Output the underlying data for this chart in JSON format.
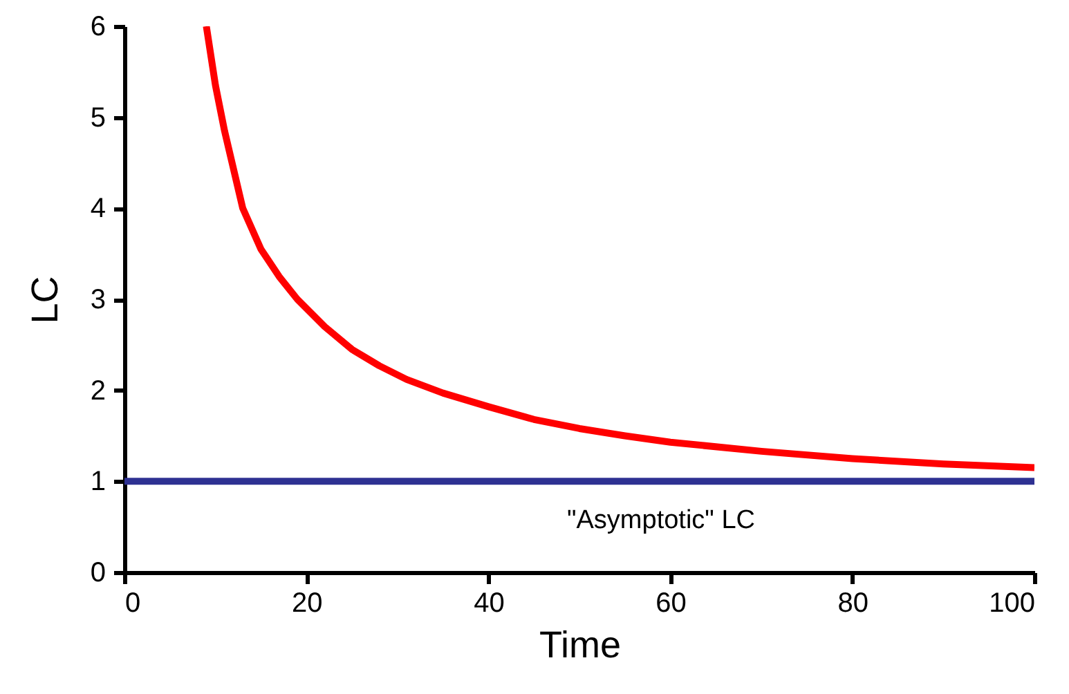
{
  "chart_data": {
    "type": "line",
    "xlabel": "Time",
    "ylabel": "LC",
    "xlim": [
      0,
      100
    ],
    "ylim": [
      0,
      6
    ],
    "xticks": [
      0,
      20,
      40,
      60,
      80,
      100
    ],
    "yticks": [
      0,
      1,
      2,
      3,
      4,
      5,
      6
    ],
    "grid": false,
    "series": [
      {
        "color": "#ff0000",
        "x": [
          9,
          10,
          11,
          13,
          15,
          17,
          19,
          22,
          25,
          28,
          31,
          35,
          40,
          45,
          50,
          55,
          60,
          70,
          80,
          90,
          100
        ],
        "values": [
          6,
          5.35,
          4.85,
          4,
          3.55,
          3.25,
          3,
          2.7,
          2.45,
          2.27,
          2.12,
          1.97,
          1.82,
          1.68,
          1.58,
          1.5,
          1.43,
          1.33,
          1.25,
          1.19,
          1.15
        ]
      },
      {
        "color": "#2e3192",
        "x": [
          0,
          100
        ],
        "values": [
          1,
          1
        ]
      }
    ],
    "annotations": [
      "\"Asymptotic\" LC"
    ]
  }
}
